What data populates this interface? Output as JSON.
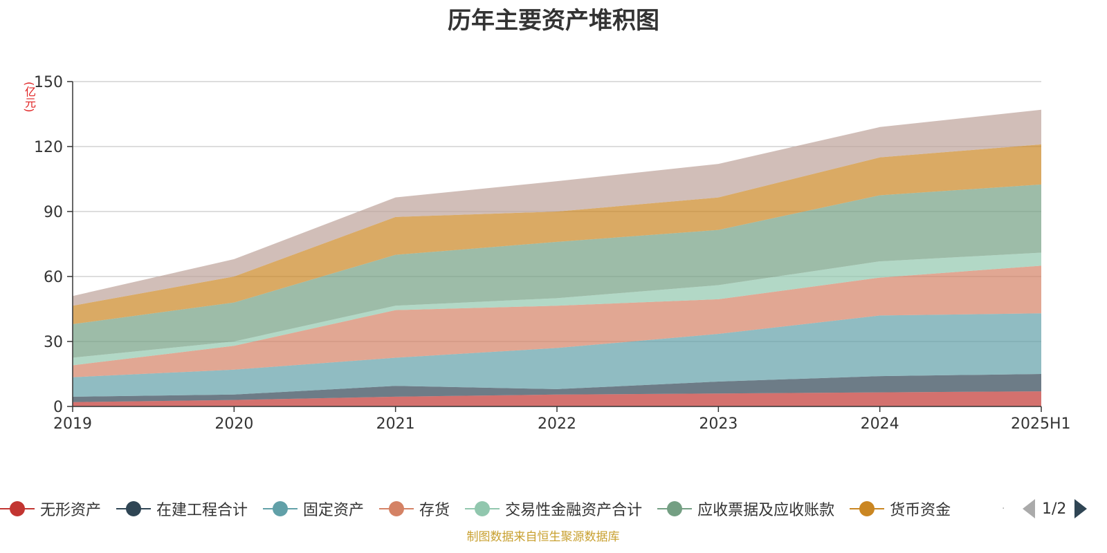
{
  "title": "历年主要资产堆积图",
  "unit_label": "(亿元)",
  "source": "制图数据来自恒生聚源数据库",
  "pager": {
    "text": "1/2"
  },
  "chart_data": {
    "type": "area",
    "stacked": true,
    "categories": [
      "2019",
      "2020",
      "2021",
      "2022",
      "2023",
      "2024",
      "2025H1"
    ],
    "ylim": [
      0,
      150
    ],
    "yticks": [
      0,
      30,
      60,
      90,
      120,
      150
    ],
    "ylabel": "(亿元)",
    "grid": true,
    "legend_position": "bottom",
    "series": [
      {
        "name": "无形资产",
        "color": "#c23531",
        "values": [
          2,
          3,
          4.5,
          5.5,
          6,
          6.5,
          7
        ]
      },
      {
        "name": "在建工程合计",
        "color": "#2f4554",
        "values": [
          2.5,
          2.5,
          5,
          2.5,
          5.5,
          7.5,
          8
        ]
      },
      {
        "name": "固定资产",
        "color": "#61a0a8",
        "values": [
          9,
          11.5,
          13,
          19,
          22,
          28,
          28
        ]
      },
      {
        "name": "存货",
        "color": "#d48265",
        "values": [
          5.5,
          11,
          22,
          19.5,
          16,
          17.5,
          22
        ]
      },
      {
        "name": "交易性金融资产合计",
        "color": "#91c7ae",
        "values": [
          3.5,
          2,
          2,
          3.5,
          6.5,
          7.5,
          6
        ]
      },
      {
        "name": "应收票据及应收账款",
        "color": "#749f83",
        "values": [
          15.5,
          18,
          23.5,
          26,
          25.5,
          30.5,
          31.5
        ]
      },
      {
        "name": "货币资金",
        "color": "#ca8622",
        "values": [
          8.5,
          12,
          17.5,
          14,
          15,
          17.5,
          18.5
        ]
      },
      {
        "color": "#bda29a",
        "values": [
          4.5,
          8,
          9,
          14,
          15.5,
          14,
          16
        ]
      }
    ]
  },
  "legend": {
    "items": [
      {
        "label": "无形资产",
        "color": "#c23531"
      },
      {
        "label": "在建工程合计",
        "color": "#2f4554"
      },
      {
        "label": "固定资产",
        "color": "#61a0a8"
      },
      {
        "label": "存货",
        "color": "#d48265"
      },
      {
        "label": "交易性金融资产合计",
        "color": "#91c7ae"
      },
      {
        "label": "应收票据及应收账款",
        "color": "#749f83"
      },
      {
        "label": "货币资金",
        "color": "#ca8622"
      }
    ]
  }
}
